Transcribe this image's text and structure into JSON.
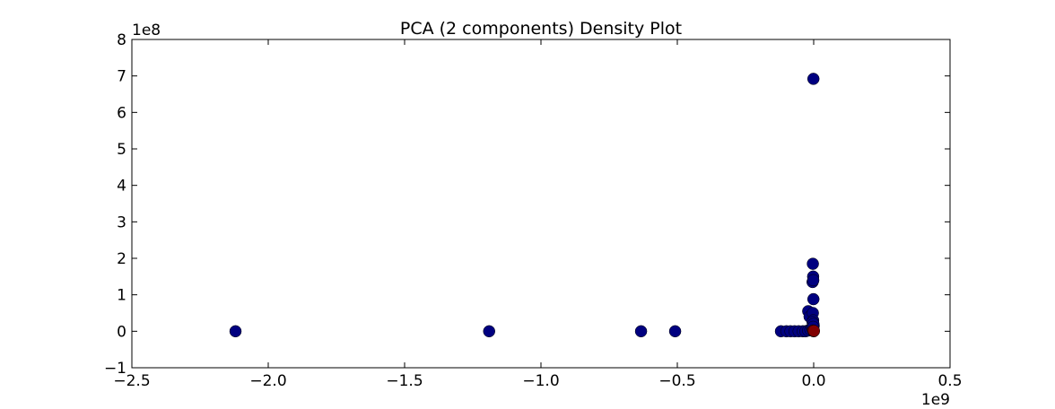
{
  "chart_data": {
    "type": "scatter",
    "title": "PCA (2 components) Density Plot",
    "xlabel": "",
    "ylabel": "",
    "x_multiplier_label": "1e9",
    "y_multiplier_label": "1e8",
    "xlim": [
      -2.5,
      0.5
    ],
    "ylim": [
      -1,
      8
    ],
    "x_ticks": [
      -2.5,
      -2.0,
      -1.5,
      -1.0,
      -0.5,
      0.0,
      0.5
    ],
    "x_tick_labels": [
      "−2.5",
      "−2.0",
      "−1.5",
      "−1.0",
      "−0.5",
      "0.0",
      "0.5"
    ],
    "y_ticks": [
      -1,
      0,
      1,
      2,
      3,
      4,
      5,
      6,
      7,
      8
    ],
    "y_tick_labels": [
      "−1",
      "0",
      "1",
      "2",
      "3",
      "4",
      "5",
      "6",
      "7",
      "8"
    ],
    "grid": false,
    "legend": false,
    "colors": {
      "navy": "#000080",
      "darkred": "#800000"
    },
    "series": [
      {
        "color": "#000080",
        "x": [
          -2.12,
          -1.19,
          -0.633,
          -0.508,
          -0.12,
          -0.1,
          -0.085,
          -0.07,
          -0.055,
          -0.04,
          -0.03,
          -0.02,
          -0.012,
          -0.006,
          -0.003,
          0.0,
          -0.001,
          -0.003,
          -0.002,
          -0.02,
          -0.015,
          -0.004,
          -0.001,
          -0.003,
          -0.002,
          -0.004,
          -0.001,
          -0.002,
          -0.0015
        ],
        "y": [
          0.0,
          0.0,
          0.0,
          0.0,
          0.0,
          0.0,
          0.0,
          0.0,
          0.0,
          0.0,
          0.0,
          0.02,
          0.05,
          0.1,
          0.05,
          0.15,
          6.92,
          1.85,
          1.5,
          0.55,
          0.4,
          1.35,
          0.88,
          0.5,
          0.3,
          0.25,
          0.2,
          0.12,
          1.4
        ]
      },
      {
        "color": "#800000",
        "x": [
          0.0,
          -0.002,
          0.001
        ],
        "y": [
          0.0,
          0.02,
          0.01
        ]
      }
    ]
  }
}
